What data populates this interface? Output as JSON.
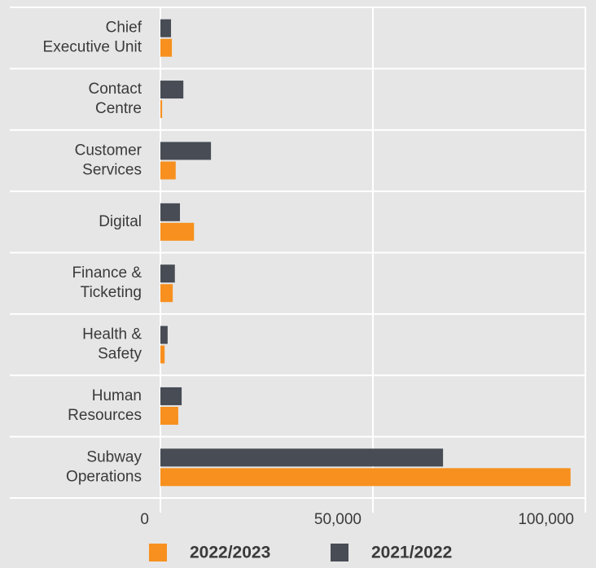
{
  "chart_data": {
    "type": "hbar",
    "categories": [
      [
        "Chief",
        "Executive Unit"
      ],
      [
        "Contact",
        "Centre"
      ],
      [
        "Customer",
        "Services"
      ],
      [
        "Digital"
      ],
      [
        "Finance &",
        "Ticketing"
      ],
      [
        "Health &",
        "Safety"
      ],
      [
        "Human",
        "Resources"
      ],
      [
        "Subway",
        "Operations"
      ]
    ],
    "series": [
      {
        "name": "2022/2023",
        "color": "#f7901e",
        "values": [
          2700,
          400,
          3600,
          7900,
          2900,
          1000,
          4200,
          96500
        ]
      },
      {
        "name": "2021/2022",
        "color": "#474c55",
        "values": [
          2500,
          5400,
          11900,
          4600,
          3400,
          1700,
          5000,
          66500
        ]
      }
    ],
    "xlim": [
      0,
      100000
    ],
    "xticks": [
      0,
      {
        "value": 50000,
        "label": "50,000"
      },
      {
        "value": 100000,
        "label": "100,000"
      }
    ],
    "grid": true
  }
}
